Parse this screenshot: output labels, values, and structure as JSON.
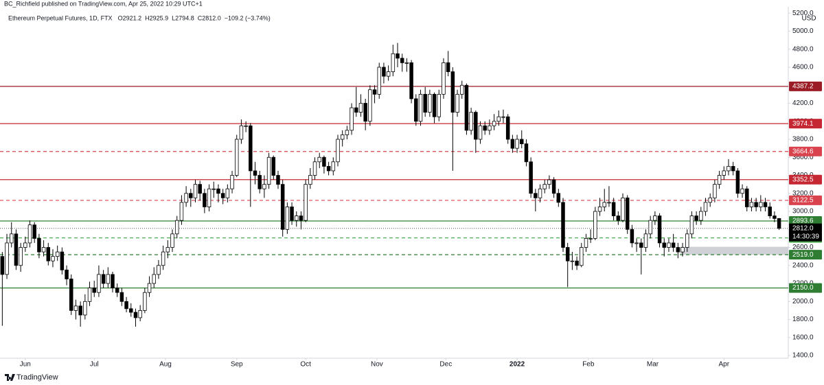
{
  "chart_data": {
    "type": "candlestick",
    "published_by": "BC_Richfield published on TradingView.com, Apr 25, 2022 10:29 UTC+1",
    "symbol": "Ethereum Perpetual Futures, 1D, FTX",
    "ohlc": [
      {
        "key": "O",
        "value": "2921.2"
      },
      {
        "key": "H",
        "value": "2925.9"
      },
      {
        "key": "L",
        "value": "2794.8"
      },
      {
        "key": "C",
        "value": "2812.0"
      }
    ],
    "change": "−109.2 (−3.74%)",
    "currency": "USD",
    "brand": "TradingView",
    "up_color": "#ffffff",
    "down_color": "#000000",
    "candles": [
      [
        2500,
        2550,
        1730,
        2300
      ],
      [
        2300,
        2750,
        2250,
        2650
      ],
      [
        2650,
        2880,
        2600,
        2750
      ],
      [
        2750,
        2800,
        2350,
        2400
      ],
      [
        2400,
        2650,
        2330,
        2600
      ],
      [
        2600,
        2720,
        2550,
        2650
      ],
      [
        2650,
        2900,
        2600,
        2850
      ],
      [
        2850,
        2880,
        2650,
        2700
      ],
      [
        2700,
        2750,
        2480,
        2550
      ],
      [
        2550,
        2680,
        2500,
        2600
      ],
      [
        2600,
        2650,
        2400,
        2450
      ],
      [
        2450,
        2580,
        2380,
        2500
      ],
      [
        2500,
        2620,
        2450,
        2550
      ],
      [
        2550,
        2600,
        2300,
        2350
      ],
      [
        2350,
        2400,
        2180,
        2250
      ],
      [
        2250,
        2300,
        1850,
        1900
      ],
      [
        1900,
        2020,
        1800,
        1950
      ],
      [
        1950,
        2000,
        1720,
        1850
      ],
      [
        1850,
        2080,
        1800,
        2000
      ],
      [
        2000,
        2220,
        1950,
        2150
      ],
      [
        2150,
        2230,
        2050,
        2100
      ],
      [
        2100,
        2400,
        2050,
        2300
      ],
      [
        2300,
        2350,
        2150,
        2200
      ],
      [
        2200,
        2380,
        2150,
        2300
      ],
      [
        2300,
        2330,
        2100,
        2150
      ],
      [
        2150,
        2200,
        2050,
        2100
      ],
      [
        2100,
        2150,
        1950,
        2000
      ],
      [
        2000,
        2050,
        1880,
        1920
      ],
      [
        1920,
        1980,
        1830,
        1880
      ],
      [
        1880,
        1920,
        1720,
        1820
      ],
      [
        1820,
        1960,
        1780,
        1900
      ],
      [
        1900,
        2150,
        1870,
        2100
      ],
      [
        2100,
        2280,
        2050,
        2200
      ],
      [
        2200,
        2380,
        2150,
        2300
      ],
      [
        2300,
        2460,
        2250,
        2400
      ],
      [
        2400,
        2620,
        2350,
        2550
      ],
      [
        2550,
        2680,
        2480,
        2600
      ],
      [
        2600,
        2800,
        2550,
        2750
      ],
      [
        2750,
        2950,
        2700,
        2900
      ],
      [
        2900,
        3180,
        2850,
        3100
      ],
      [
        3100,
        3280,
        3050,
        3200
      ],
      [
        3200,
        3250,
        3050,
        3150
      ],
      [
        3150,
        3350,
        3100,
        3300
      ],
      [
        3300,
        3340,
        3120,
        3200
      ],
      [
        3200,
        3250,
        2980,
        3050
      ],
      [
        3050,
        3300,
        3000,
        3250
      ],
      [
        3250,
        3330,
        3150,
        3250
      ],
      [
        3250,
        3300,
        3100,
        3200
      ],
      [
        3200,
        3250,
        3080,
        3150
      ],
      [
        3150,
        3300,
        3100,
        3250
      ],
      [
        3250,
        3450,
        3200,
        3400
      ],
      [
        3400,
        3850,
        3380,
        3800
      ],
      [
        3800,
        4020,
        3750,
        3950
      ],
      [
        3950,
        4000,
        3880,
        3950
      ],
      [
        3950,
        3980,
        3050,
        3450
      ],
      [
        3450,
        3550,
        3300,
        3400
      ],
      [
        3400,
        3450,
        3200,
        3250
      ],
      [
        3250,
        3400,
        3150,
        3300
      ],
      [
        3300,
        3650,
        3250,
        3600
      ],
      [
        3600,
        3620,
        3350,
        3400
      ],
      [
        3400,
        3450,
        3250,
        3300
      ],
      [
        3300,
        3350,
        2720,
        2800
      ],
      [
        2800,
        3100,
        2750,
        3050
      ],
      [
        3050,
        3100,
        2850,
        2900
      ],
      [
        2900,
        3000,
        2830,
        2950
      ],
      [
        2950,
        3000,
        2800,
        2900
      ],
      [
        2900,
        3350,
        2880,
        3300
      ],
      [
        3300,
        3480,
        3250,
        3400
      ],
      [
        3400,
        3600,
        3350,
        3550
      ],
      [
        3550,
        3650,
        3480,
        3600
      ],
      [
        3600,
        3620,
        3420,
        3500
      ],
      [
        3500,
        3550,
        3400,
        3450
      ],
      [
        3450,
        3600,
        3400,
        3550
      ],
      [
        3550,
        3850,
        3500,
        3800
      ],
      [
        3800,
        3900,
        3720,
        3850
      ],
      [
        3850,
        3950,
        3800,
        3900
      ],
      [
        3900,
        4200,
        3850,
        4150
      ],
      [
        4150,
        4380,
        4050,
        4100
      ],
      [
        4100,
        4300,
        4050,
        4200
      ],
      [
        4200,
        4250,
        3900,
        4000
      ],
      [
        4000,
        4400,
        3950,
        4350
      ],
      [
        4350,
        4400,
        4200,
        4300
      ],
      [
        4300,
        4650,
        4250,
        4600
      ],
      [
        4600,
        4650,
        4420,
        4500
      ],
      [
        4500,
        4620,
        4450,
        4550
      ],
      [
        4550,
        4850,
        4500,
        4750
      ],
      [
        4750,
        4870,
        4600,
        4700
      ],
      [
        4700,
        4750,
        4550,
        4650
      ],
      [
        4650,
        4700,
        4550,
        4650
      ],
      [
        4650,
        4680,
        4200,
        4250
      ],
      [
        4250,
        4300,
        3950,
        4000
      ],
      [
        4000,
        4350,
        3950,
        4300
      ],
      [
        4300,
        4380,
        4050,
        4100
      ],
      [
        4100,
        4350,
        4050,
        4300
      ],
      [
        4300,
        4320,
        3980,
        4050
      ],
      [
        4050,
        4350,
        4000,
        4300
      ],
      [
        4300,
        4700,
        4250,
        4650
      ],
      [
        4650,
        4780,
        4500,
        4550
      ],
      [
        4550,
        4600,
        3450,
        4100
      ],
      [
        4100,
        4350,
        4050,
        4300
      ],
      [
        4300,
        4450,
        4250,
        4400
      ],
      [
        4400,
        4420,
        3850,
        3900
      ],
      [
        3900,
        4150,
        3850,
        4100
      ],
      [
        4100,
        4120,
        3650,
        3800
      ],
      [
        3800,
        4000,
        3750,
        3950
      ],
      [
        3950,
        4000,
        3850,
        3900
      ],
      [
        3900,
        4020,
        3850,
        3950
      ],
      [
        3950,
        4080,
        3900,
        4000
      ],
      [
        4000,
        4120,
        3950,
        4050
      ],
      [
        4050,
        4130,
        3980,
        4050
      ],
      [
        4050,
        4080,
        3750,
        3800
      ],
      [
        3800,
        3850,
        3650,
        3700
      ],
      [
        3700,
        3850,
        3650,
        3800
      ],
      [
        3800,
        3900,
        3700,
        3750
      ],
      [
        3750,
        3800,
        3500,
        3550
      ],
      [
        3550,
        3600,
        3150,
        3200
      ],
      [
        3200,
        3250,
        3000,
        3150
      ],
      [
        3150,
        3300,
        3100,
        3250
      ],
      [
        3250,
        3350,
        3200,
        3300
      ],
      [
        3300,
        3400,
        3250,
        3350
      ],
      [
        3350,
        3380,
        3150,
        3200
      ],
      [
        3200,
        3250,
        3050,
        3100
      ],
      [
        3100,
        3150,
        2550,
        2600
      ],
      [
        2600,
        2650,
        2160,
        2450
      ],
      [
        2450,
        2550,
        2350,
        2450
      ],
      [
        2450,
        2500,
        2350,
        2400
      ],
      [
        2400,
        2650,
        2380,
        2600
      ],
      [
        2600,
        2750,
        2550,
        2700
      ],
      [
        2700,
        2800,
        2650,
        2700
      ],
      [
        2700,
        3050,
        2680,
        3000
      ],
      [
        3000,
        3150,
        2950,
        3050
      ],
      [
        3050,
        3250,
        3000,
        3100
      ],
      [
        3100,
        3280,
        3050,
        3100
      ],
      [
        3100,
        3150,
        2900,
        2950
      ],
      [
        2950,
        3000,
        2850,
        2900
      ],
      [
        2900,
        3200,
        2880,
        3150
      ],
      [
        3150,
        3180,
        2750,
        2800
      ],
      [
        2800,
        2850,
        2600,
        2650
      ],
      [
        2650,
        2700,
        2550,
        2650
      ],
      [
        2650,
        2700,
        2300,
        2600
      ],
      [
        2600,
        2800,
        2550,
        2750
      ],
      [
        2750,
        2950,
        2700,
        2900
      ],
      [
        2900,
        3000,
        2850,
        2950
      ],
      [
        2950,
        2980,
        2600,
        2650
      ],
      [
        2650,
        2700,
        2500,
        2600
      ],
      [
        2600,
        2700,
        2550,
        2650
      ],
      [
        2650,
        2750,
        2550,
        2600
      ],
      [
        2600,
        2650,
        2480,
        2550
      ],
      [
        2550,
        2650,
        2500,
        2600
      ],
      [
        2600,
        2800,
        2550,
        2750
      ],
      [
        2750,
        3000,
        2700,
        2950
      ],
      [
        2950,
        3000,
        2850,
        2900
      ],
      [
        2900,
        3050,
        2850,
        3000
      ],
      [
        3000,
        3150,
        2950,
        3100
      ],
      [
        3100,
        3200,
        3050,
        3150
      ],
      [
        3150,
        3350,
        3100,
        3300
      ],
      [
        3300,
        3450,
        3250,
        3400
      ],
      [
        3400,
        3500,
        3350,
        3450
      ],
      [
        3450,
        3580,
        3400,
        3500
      ],
      [
        3500,
        3550,
        3400,
        3450
      ],
      [
        3450,
        3480,
        3150,
        3200
      ],
      [
        3200,
        3300,
        3150,
        3250
      ],
      [
        3250,
        3280,
        3000,
        3050
      ],
      [
        3050,
        3150,
        3000,
        3100
      ],
      [
        3100,
        3150,
        3000,
        3050
      ],
      [
        3050,
        3180,
        3000,
        3100
      ],
      [
        3100,
        3150,
        3000,
        3050
      ],
      [
        3050,
        3100,
        2920,
        2950
      ],
      [
        2950,
        3000,
        2880,
        2921.2
      ],
      [
        2921.2,
        2925.9,
        2794.8,
        2812.0
      ]
    ],
    "xlim": [
      -0.5,
      171
    ],
    "xticks": [
      {
        "value": 5,
        "label": "Jun"
      },
      {
        "value": 20,
        "label": "Jul"
      },
      {
        "value": 35.5,
        "label": "Aug"
      },
      {
        "value": 51,
        "label": "Sep"
      },
      {
        "value": 66,
        "label": "Oct"
      },
      {
        "value": 81.5,
        "label": "Nov"
      },
      {
        "value": 96.5,
        "label": "Dec"
      },
      {
        "value": 112,
        "label": "2022",
        "bold": true
      },
      {
        "value": 127.5,
        "label": "Feb"
      },
      {
        "value": 141.5,
        "label": "Mar"
      },
      {
        "value": 157,
        "label": "Apr"
      }
    ],
    "ylim": [
      1370,
      5270
    ],
    "yticks": [
      {
        "value": 1400,
        "label": "1400.0"
      },
      {
        "value": 1600,
        "label": "1600.0"
      },
      {
        "value": 1800,
        "label": "1800.0"
      },
      {
        "value": 2000,
        "label": "2000.0"
      },
      {
        "value": 2200,
        "label": "2200.0"
      },
      {
        "value": 2400,
        "label": "2400.0"
      },
      {
        "value": 2600,
        "label": "2600.0"
      },
      {
        "value": 2800,
        "label": "2800.0"
      },
      {
        "value": 3000,
        "label": "3000.0"
      },
      {
        "value": 3200,
        "label": "3200.0"
      },
      {
        "value": 3400,
        "label": "3400.0"
      },
      {
        "value": 3600,
        "label": "3600.0"
      },
      {
        "value": 3800,
        "label": "3800.0"
      },
      {
        "value": 4000,
        "label": "4000.0"
      },
      {
        "value": 4200,
        "label": "4200.0"
      },
      {
        "value": 4400,
        "label": "4400.0"
      },
      {
        "value": 4600,
        "label": "4600.0"
      },
      {
        "value": 4800,
        "label": "4800.0"
      },
      {
        "value": 5000,
        "label": "5000.0"
      },
      {
        "value": 5200,
        "label": "5200.0"
      }
    ],
    "levels": [
      {
        "value": 4387.2,
        "label": "4387.2",
        "color": "#9c1c26",
        "dashed": false
      },
      {
        "value": 3974.1,
        "label": "3974.1",
        "color": "#c62833",
        "dashed": false
      },
      {
        "value": 3664.6,
        "label": "3664.6",
        "color": "#d9434d",
        "dashed": true
      },
      {
        "value": 3352.5,
        "label": "3352.5",
        "color": "#c62833",
        "dashed": false
      },
      {
        "value": 3122.5,
        "label": "3122.5",
        "color": "#d9434d",
        "dashed": true
      },
      {
        "value": 2893.6,
        "label": "2893.6",
        "color": "#2e7d32",
        "dashed": false
      },
      {
        "value": 2706.1,
        "label": "2706.1",
        "color": "#4caf50",
        "dashed": true
      },
      {
        "value": 2519.0,
        "label": "2519.0",
        "color": "#2e7d32",
        "dashed": true
      },
      {
        "value": 2150.0,
        "label": "2150.0",
        "color": "#2e7d32",
        "dashed": false
      }
    ],
    "zone": {
      "start": 148,
      "range": [
        2519,
        2607
      ],
      "color": "#cfd1d6"
    },
    "last_price": {
      "value": 2812.0,
      "label": "2812.0",
      "countdown": "14:30:39"
    }
  }
}
